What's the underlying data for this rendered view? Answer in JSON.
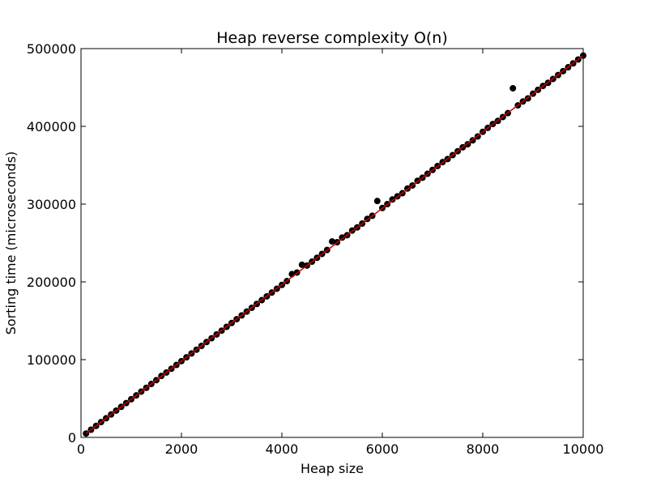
{
  "chart_data": {
    "type": "scatter",
    "title": "Heap reverse complexity O(n)",
    "xlabel": "Heap size",
    "ylabel": "Sorting time (microseconds)",
    "xlim": [
      0,
      10000
    ],
    "ylim": [
      0,
      500000
    ],
    "xticks": [
      "0",
      "2000",
      "4000",
      "6000",
      "8000",
      "10000"
    ],
    "yticks": [
      "0",
      "100000",
      "200000",
      "300000",
      "400000",
      "500000"
    ],
    "grid": false,
    "legend": "none",
    "colors": {
      "points": "#000000",
      "fit_line": "#cc0000"
    },
    "series": [
      {
        "values_desc": "measured",
        "x": [
          100,
          200,
          300,
          400,
          500,
          600,
          700,
          800,
          900,
          1000,
          1100,
          1200,
          1300,
          1400,
          1500,
          1600,
          1700,
          1800,
          1900,
          2000,
          2100,
          2200,
          2300,
          2400,
          2500,
          2600,
          2700,
          2800,
          2900,
          3000,
          3100,
          3200,
          3300,
          3400,
          3500,
          3600,
          3700,
          3800,
          3900,
          4000,
          4100,
          4200,
          4300,
          4400,
          4500,
          4600,
          4700,
          4800,
          4900,
          5000,
          5100,
          5200,
          5300,
          5400,
          5500,
          5600,
          5700,
          5800,
          5900,
          6000,
          6100,
          6200,
          6300,
          6400,
          6500,
          6600,
          6700,
          6800,
          6900,
          7000,
          7100,
          7200,
          7300,
          7400,
          7500,
          7600,
          7700,
          7800,
          7900,
          8000,
          8100,
          8200,
          8300,
          8400,
          8500,
          8600,
          8700,
          8800,
          8900,
          9000,
          9100,
          9200,
          9300,
          9400,
          9500,
          9600,
          9700,
          9800,
          9900,
          10000
        ],
        "y": [
          5000,
          9900,
          14800,
          19700,
          24600,
          29500,
          34400,
          39300,
          44200,
          49100,
          54000,
          58900,
          63800,
          68700,
          73600,
          79000,
          83400,
          88300,
          93200,
          98100,
          103000,
          107900,
          112800,
          117700,
          122600,
          127500,
          132400,
          137300,
          142200,
          147100,
          152000,
          156900,
          161800,
          166700,
          171600,
          176500,
          181400,
          186300,
          191200,
          196100,
          201000,
          210000,
          212000,
          222000,
          221000,
          226000,
          231000,
          236000,
          241000,
          252000,
          251000,
          257000,
          260000,
          266000,
          270000,
          275000,
          281000,
          285000,
          304000,
          295000,
          300000,
          306000,
          310000,
          314000,
          320000,
          324000,
          330000,
          334000,
          339000,
          344000,
          349000,
          354000,
          358000,
          363000,
          368000,
          373000,
          377000,
          382000,
          387000,
          393000,
          398000,
          403000,
          407000,
          412000,
          417000,
          449000,
          427000,
          432000,
          436000,
          442000,
          447000,
          452000,
          456000,
          461000,
          466000,
          471000,
          476000,
          481000,
          486000,
          491000
        ]
      }
    ],
    "fit_line": {
      "x": [
        100,
        10000
      ],
      "y": [
        5000,
        491000
      ]
    }
  }
}
